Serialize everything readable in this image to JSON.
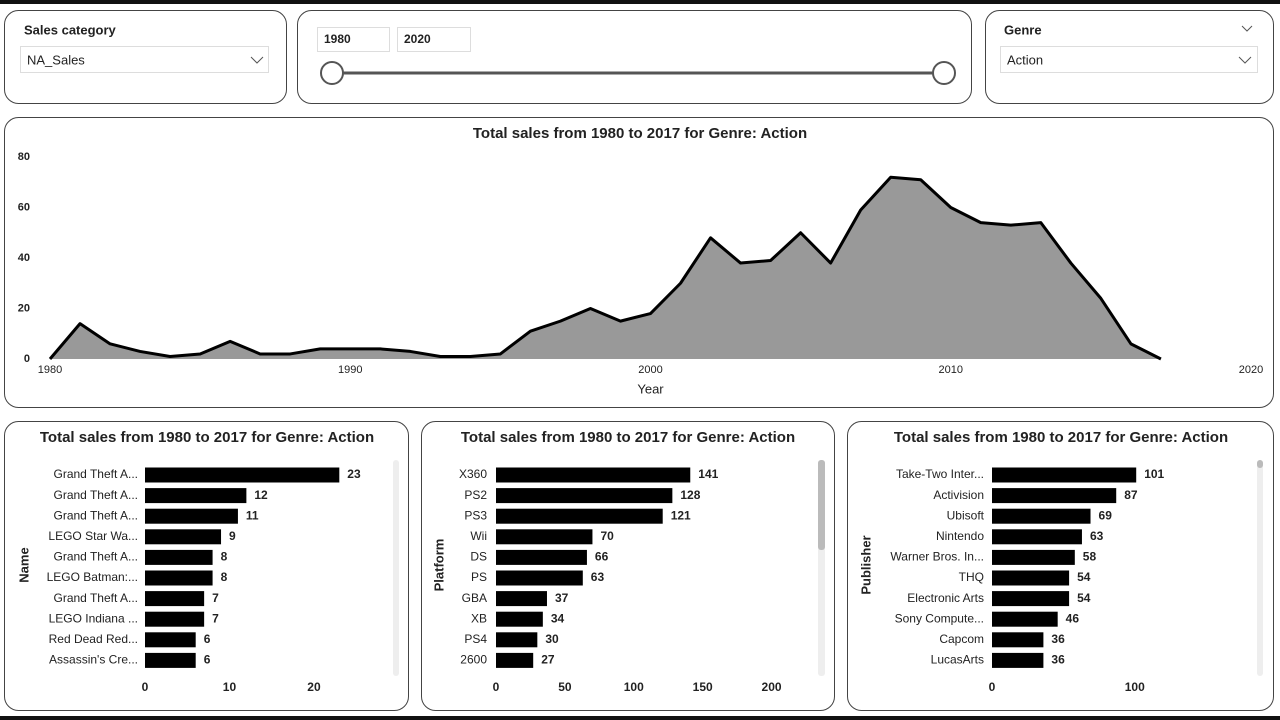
{
  "slicers": {
    "sales_category": {
      "label": "Sales category",
      "value": "NA_Sales"
    },
    "year_range": {
      "start": "1980",
      "end": "2020"
    },
    "genre": {
      "label": "Genre",
      "value": "Action"
    }
  },
  "chart_data": [
    {
      "type": "area",
      "title": "Total sales from 1980 to 2017 for Genre: Action",
      "x_label": "Year",
      "x": [
        1980,
        1981,
        1982,
        1983,
        1984,
        1985,
        1986,
        1987,
        1988,
        1989,
        1990,
        1991,
        1992,
        1993,
        1994,
        1995,
        1996,
        1997,
        1998,
        1999,
        2000,
        2001,
        2002,
        2003,
        2004,
        2005,
        2006,
        2007,
        2008,
        2009,
        2010,
        2011,
        2012,
        2013,
        2014,
        2015,
        2016,
        2017
      ],
      "values": [
        0,
        14,
        6,
        3,
        1,
        2,
        7,
        2,
        2,
        4,
        4,
        4,
        3,
        1,
        1,
        2,
        11,
        15,
        20,
        15,
        18,
        30,
        48,
        38,
        39,
        50,
        38,
        59,
        72,
        71,
        60,
        54,
        53,
        54,
        38,
        24,
        6,
        0
      ],
      "xlim": [
        1980,
        2020
      ],
      "xticks": [
        1980,
        1990,
        2000,
        2010,
        2020
      ],
      "ylim": [
        0,
        80
      ],
      "yticks": [
        0,
        20,
        40,
        60,
        80
      ],
      "color": "#999999",
      "line_color": "#000000"
    },
    {
      "type": "bar",
      "orientation": "horizontal",
      "title": "Total sales from 1980 to 2017 for Genre: Action",
      "y_label": "Name",
      "categories": [
        "Grand Theft A...",
        "Grand Theft A...",
        "Grand Theft A...",
        "LEGO Star Wa...",
        "Grand Theft A...",
        "LEGO Batman:...",
        "Grand Theft A...",
        "LEGO Indiana ...",
        "Red Dead Red...",
        "Assassin's Cre..."
      ],
      "values": [
        23,
        12,
        11,
        9,
        8,
        8,
        7,
        7,
        6,
        6
      ],
      "xlim": [
        0,
        29
      ],
      "xticks": [
        0,
        10,
        20
      ],
      "color": "#000000"
    },
    {
      "type": "bar",
      "orientation": "horizontal",
      "title": "Total sales from 1980 to 2017 for Genre: Action",
      "y_label": "Platform",
      "categories": [
        "X360",
        "PS2",
        "PS3",
        "Wii",
        "DS",
        "PS",
        "GBA",
        "XB",
        "PS4",
        "2600"
      ],
      "values": [
        141,
        128,
        121,
        70,
        66,
        63,
        37,
        34,
        30,
        27
      ],
      "xlim": [
        0,
        225
      ],
      "xticks": [
        0,
        50,
        100,
        150,
        200
      ],
      "color": "#000000"
    },
    {
      "type": "bar",
      "orientation": "horizontal",
      "title": "Total sales from 1980 to 2017 for Genre: Action",
      "y_label": "Publisher",
      "categories": [
        "Take-Two Inter...",
        "Activision",
        "Ubisoft",
        "Nintendo",
        "Warner Bros. In...",
        "THQ",
        "Electronic Arts",
        "Sony Compute...",
        "Capcom",
        "LucasArts"
      ],
      "values": [
        101,
        87,
        69,
        63,
        58,
        54,
        54,
        46,
        36,
        36
      ],
      "xlim": [
        0,
        180
      ],
      "xticks": [
        0,
        100
      ],
      "color": "#000000"
    }
  ]
}
